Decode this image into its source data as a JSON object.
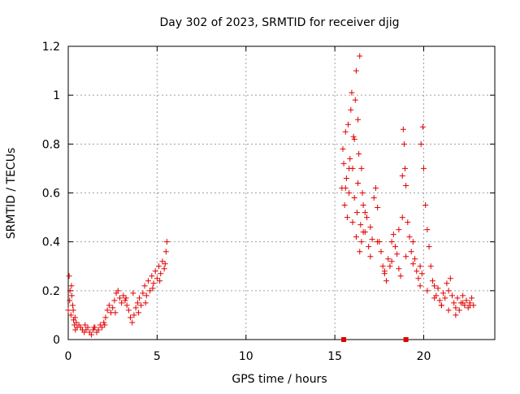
{
  "chart_data": {
    "type": "scatter",
    "title": "Day 302 of 2023, SRMTID for receiver djig",
    "xlabel": "GPS time / hours",
    "ylabel": "SRMTID / TECUs",
    "xlim": [
      0,
      24
    ],
    "ylim": [
      0,
      1.2
    ],
    "xticks": [
      0,
      5,
      10,
      15,
      20
    ],
    "xtick_labels": [
      "0",
      "5",
      "10",
      "15",
      "20"
    ],
    "yticks": [
      0,
      0.2,
      0.4,
      0.6,
      0.8,
      1.0,
      1.2
    ],
    "ytick_labels": [
      "0",
      "0.2",
      "0.4",
      "0.6",
      "0.8",
      "1",
      "1.2"
    ],
    "grid": true,
    "marker": "plus",
    "color": "#e00000",
    "series": [
      {
        "name": "SRMTID",
        "x": [
          0.0,
          0.05,
          0.1,
          0.15,
          0.2,
          0.25,
          0.3,
          0.35,
          0.4,
          0.45,
          0.5,
          0.6,
          0.7,
          0.8,
          0.9,
          1.0,
          1.1,
          1.2,
          1.3,
          1.4,
          1.5,
          1.6,
          1.7,
          1.8,
          1.9,
          2.0,
          2.1,
          2.2,
          2.3,
          2.4,
          2.5,
          2.6,
          2.7,
          2.8,
          2.9,
          3.0,
          3.1,
          3.2,
          3.3,
          3.4,
          3.5,
          3.6,
          3.7,
          3.8,
          3.9,
          4.0,
          4.1,
          4.2,
          4.3,
          4.4,
          4.5,
          4.6,
          4.7,
          4.8,
          4.9,
          5.0,
          5.1,
          5.2,
          5.3,
          5.4,
          5.5,
          5.55,
          0.08,
          0.18,
          0.28,
          0.38,
          0.95,
          1.45,
          2.05,
          2.65,
          3.25,
          3.65,
          3.95,
          4.35,
          4.75,
          5.15,
          5.45,
          15.4,
          15.45,
          15.5,
          15.55,
          15.6,
          15.65,
          15.7,
          15.75,
          15.8,
          15.85,
          15.9,
          15.95,
          16.0,
          16.05,
          16.1,
          16.15,
          16.2,
          16.25,
          16.3,
          16.35,
          16.4,
          16.45,
          16.5,
          16.55,
          16.6,
          16.7,
          16.8,
          16.9,
          17.0,
          17.1,
          17.2,
          17.3,
          17.4,
          17.5,
          17.6,
          17.7,
          17.8,
          17.9,
          18.0,
          18.1,
          18.2,
          18.3,
          18.4,
          18.5,
          18.6,
          18.7,
          18.8,
          18.85,
          18.9,
          18.95,
          19.0,
          19.1,
          19.2,
          19.3,
          19.4,
          19.5,
          19.6,
          19.7,
          19.8,
          19.9,
          19.95,
          20.0,
          20.1,
          20.2,
          20.3,
          20.4,
          20.5,
          20.6,
          20.7,
          20.8,
          20.9,
          21.0,
          21.1,
          21.2,
          21.3,
          21.4,
          21.5,
          21.6,
          21.7,
          21.8,
          21.9,
          22.0,
          22.1,
          22.2,
          22.3,
          22.4,
          22.5,
          22.6,
          22.7,
          22.8,
          15.6,
          15.8,
          16.0,
          16.2,
          16.4,
          16.6,
          17.0,
          17.4,
          17.8,
          18.2,
          18.6,
          19.0,
          19.4,
          19.8,
          20.2,
          20.6,
          21.0,
          21.4,
          21.8,
          22.2,
          22.6,
          16.1,
          16.3,
          16.5,
          16.7,
          18.8,
          19.85
        ],
        "y": [
          0.12,
          0.26,
          0.2,
          0.1,
          0.18,
          0.14,
          0.08,
          0.06,
          0.04,
          0.07,
          0.05,
          0.06,
          0.05,
          0.04,
          0.03,
          0.04,
          0.05,
          0.03,
          0.02,
          0.04,
          0.05,
          0.03,
          0.04,
          0.06,
          0.05,
          0.07,
          0.09,
          0.12,
          0.14,
          0.11,
          0.13,
          0.16,
          0.19,
          0.2,
          0.17,
          0.15,
          0.18,
          0.16,
          0.14,
          0.12,
          0.09,
          0.07,
          0.1,
          0.13,
          0.15,
          0.17,
          0.14,
          0.19,
          0.22,
          0.18,
          0.24,
          0.2,
          0.26,
          0.23,
          0.28,
          0.25,
          0.3,
          0.27,
          0.32,
          0.29,
          0.36,
          0.4,
          0.16,
          0.22,
          0.12,
          0.09,
          0.06,
          0.05,
          0.06,
          0.11,
          0.17,
          0.19,
          0.11,
          0.15,
          0.21,
          0.24,
          0.31,
          0.62,
          0.78,
          0.72,
          0.55,
          0.85,
          0.66,
          0.5,
          0.88,
          0.6,
          0.74,
          0.94,
          1.01,
          0.7,
          0.83,
          0.58,
          0.98,
          1.1,
          0.52,
          0.64,
          0.76,
          1.16,
          0.47,
          0.4,
          0.6,
          0.55,
          0.44,
          0.5,
          0.38,
          0.46,
          0.41,
          0.58,
          0.62,
          0.54,
          0.4,
          0.36,
          0.3,
          0.27,
          0.24,
          0.33,
          0.3,
          0.4,
          0.43,
          0.38,
          0.35,
          0.29,
          0.26,
          0.5,
          0.86,
          0.8,
          0.7,
          0.63,
          0.48,
          0.42,
          0.36,
          0.31,
          0.33,
          0.28,
          0.25,
          0.3,
          0.27,
          0.87,
          0.7,
          0.55,
          0.45,
          0.38,
          0.3,
          0.24,
          0.22,
          0.18,
          0.21,
          0.16,
          0.14,
          0.19,
          0.17,
          0.23,
          0.2,
          0.25,
          0.18,
          0.15,
          0.13,
          0.17,
          0.12,
          0.15,
          0.18,
          0.14,
          0.16,
          0.13,
          0.15,
          0.17,
          0.14,
          0.62,
          0.7,
          0.48,
          0.42,
          0.36,
          0.44,
          0.34,
          0.4,
          0.28,
          0.32,
          0.45,
          0.34,
          0.4,
          0.22,
          0.2,
          0.17,
          0.14,
          0.12,
          0.1,
          0.15,
          0.14,
          0.82,
          0.9,
          0.7,
          0.52,
          0.67,
          0.8
        ]
      },
      {
        "name": "markers",
        "x": [
          15.5,
          19.0
        ],
        "y": [
          0.0,
          0.0
        ]
      }
    ]
  }
}
